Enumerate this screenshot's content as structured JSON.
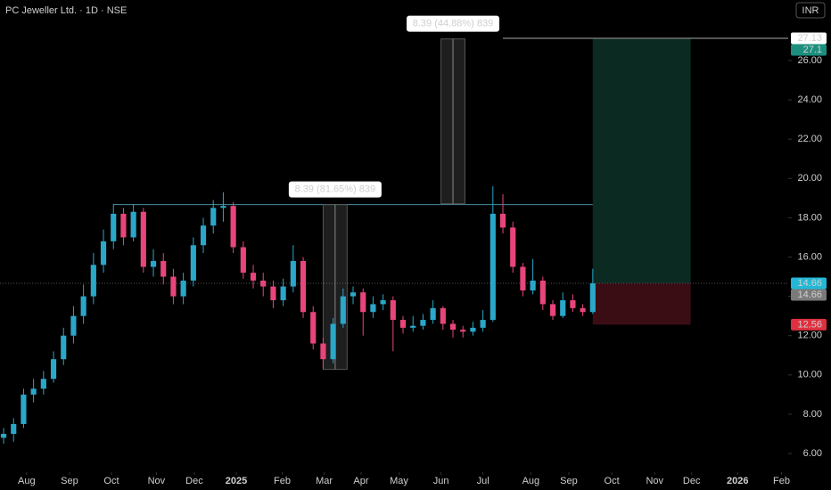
{
  "chart_data": {
    "type": "candlestick",
    "title": "PC Jeweller Ltd. · 1D · NSE",
    "currency": "INR",
    "up_color": "#2aa7c9",
    "down_color": "#e8457a",
    "open": [
      6.8,
      7.0,
      7.5,
      9.0,
      9.3,
      9.8,
      10.8,
      12.0,
      13.0,
      14.0,
      15.6,
      16.8,
      18.2,
      17.0,
      18.3,
      15.5,
      15.8,
      15.0,
      14.0,
      14.8,
      16.6,
      17.6,
      18.5,
      18.6,
      16.5,
      15.2,
      14.8,
      14.5,
      13.8,
      14.5,
      15.8,
      13.2,
      11.6,
      10.8,
      12.6,
      14.0,
      14.2,
      13.2,
      13.6,
      13.8,
      12.8,
      12.4,
      12.5,
      12.8,
      13.4,
      12.6,
      12.3,
      12.2,
      12.4,
      12.8,
      18.2,
      17.5,
      15.5,
      14.3,
      14.8,
      13.6,
      13.0,
      13.8,
      13.4,
      13.2
    ],
    "high": [
      7.3,
      7.8,
      9.3,
      9.8,
      10.2,
      11.2,
      12.4,
      13.5,
      14.6,
      16.2,
      17.4,
      18.7,
      18.5,
      18.7,
      18.5,
      16.4,
      16.2,
      15.4,
      15.2,
      17.0,
      18.0,
      18.9,
      19.3,
      18.8,
      16.8,
      15.6,
      15.2,
      14.8,
      14.9,
      16.6,
      16.0,
      13.5,
      11.9,
      12.9,
      14.4,
      14.5,
      14.4,
      14.0,
      14.1,
      14.0,
      13.0,
      13.0,
      13.1,
      13.8,
      13.5,
      12.8,
      12.5,
      12.7,
      13.3,
      19.6,
      19.2,
      17.8,
      15.7,
      15.9,
      15.0,
      13.8,
      14.2,
      14.1,
      13.6,
      15.4
    ],
    "low": [
      6.5,
      6.6,
      7.3,
      8.6,
      9.0,
      9.6,
      10.5,
      11.6,
      12.6,
      13.6,
      15.2,
      16.4,
      16.6,
      16.8,
      15.2,
      15.0,
      14.6,
      13.6,
      13.6,
      14.5,
      16.2,
      17.2,
      17.8,
      16.2,
      14.9,
      14.4,
      14.0,
      13.4,
      13.5,
      14.2,
      12.9,
      11.3,
      10.3,
      10.6,
      12.4,
      13.6,
      12.0,
      12.9,
      13.3,
      11.2,
      12.1,
      12.2,
      12.3,
      12.6,
      12.3,
      11.9,
      11.9,
      12.0,
      12.2,
      12.7,
      17.2,
      15.2,
      14.0,
      14.1,
      13.3,
      12.8,
      12.9,
      13.2,
      13.0,
      13.1
    ],
    "close": [
      7.0,
      7.5,
      9.0,
      9.3,
      9.8,
      10.8,
      12.0,
      13.0,
      14.0,
      15.6,
      16.8,
      18.2,
      17.0,
      18.3,
      15.5,
      15.8,
      15.0,
      14.0,
      14.8,
      16.6,
      17.6,
      18.5,
      18.6,
      16.5,
      15.2,
      14.8,
      14.5,
      13.8,
      14.5,
      15.8,
      13.2,
      11.6,
      10.8,
      12.6,
      14.0,
      14.2,
      13.2,
      13.6,
      13.8,
      12.8,
      12.4,
      12.5,
      12.8,
      13.4,
      12.6,
      12.3,
      12.2,
      12.4,
      12.8,
      18.2,
      17.5,
      15.5,
      14.3,
      14.8,
      13.6,
      13.0,
      13.8,
      13.4,
      13.2,
      14.66
    ],
    "xlim": [
      -0.36,
      78.57
    ],
    "xticks": [
      {
        "value": 2.3,
        "label": "Aug"
      },
      {
        "value": 6.6,
        "label": "Sep"
      },
      {
        "value": 10.8,
        "label": "Oct"
      },
      {
        "value": 15.3,
        "label": "Nov"
      },
      {
        "value": 19.1,
        "label": "Dec"
      },
      {
        "value": 23.3,
        "label": "2025"
      },
      {
        "value": 27.9,
        "label": "Feb"
      },
      {
        "value": 32.1,
        "label": "Mar"
      },
      {
        "value": 35.8,
        "label": "Apr"
      },
      {
        "value": 39.6,
        "label": "May"
      },
      {
        "value": 43.8,
        "label": "Jun"
      },
      {
        "value": 48.0,
        "label": "Jul"
      },
      {
        "value": 52.8,
        "label": "Aug"
      },
      {
        "value": 56.6,
        "label": "Sep"
      },
      {
        "value": 60.9,
        "label": "Oct"
      },
      {
        "value": 65.2,
        "label": "Nov"
      },
      {
        "value": 68.9,
        "label": "Dec"
      },
      {
        "value": 73.5,
        "label": "2026"
      },
      {
        "value": 77.9,
        "label": "Feb"
      }
    ],
    "ylim": [
      5.05,
      29.08
    ],
    "yticks": [
      {
        "value": 6,
        "label": "6.00"
      },
      {
        "value": 8,
        "label": "8.00"
      },
      {
        "value": 10,
        "label": "10.00"
      },
      {
        "value": 12,
        "label": "12.00"
      },
      {
        "value": 14,
        "label": "14.00"
      },
      {
        "value": 16,
        "label": "16.00"
      },
      {
        "value": 18,
        "label": "18.00"
      },
      {
        "value": 20,
        "label": "20.00"
      },
      {
        "value": 22,
        "label": "22.00"
      },
      {
        "value": 24,
        "label": "24.00"
      },
      {
        "value": 26,
        "label": "26.00"
      }
    ],
    "resistance": {
      "value": 18.67,
      "x0": 11,
      "x1": 59
    },
    "top_line": {
      "value": 27.13,
      "x0": 50
    },
    "measures": [
      {
        "label": "8.39 (81.65%) 839",
        "low": 10.28,
        "high": 18.67,
        "x0": 32,
        "x1": 34.4
      },
      {
        "label": "8.39 (44.88%) 839",
        "low": 18.71,
        "high": 27.1,
        "x0": 43.8,
        "x1": 46.2
      }
    ],
    "position": {
      "entry": 14.66,
      "target": 27.1,
      "stop": 12.56,
      "x0": 59,
      "x1": 68.8
    },
    "price_labels": [
      {
        "value": 27.13,
        "color": "#ffffff",
        "text_color": "#000000"
      },
      {
        "value": 27.1,
        "color": "#1c8f7e",
        "text_color": "#ffffff"
      },
      {
        "value": 14.66,
        "color": "#22b8d6",
        "text_color": "#000000"
      },
      {
        "value": 14.66,
        "color": "#7a7a7a",
        "text_color": "#ffffff"
      },
      {
        "value": 12.56,
        "color": "#e0303f",
        "text_color": "#ffffff"
      }
    ]
  }
}
